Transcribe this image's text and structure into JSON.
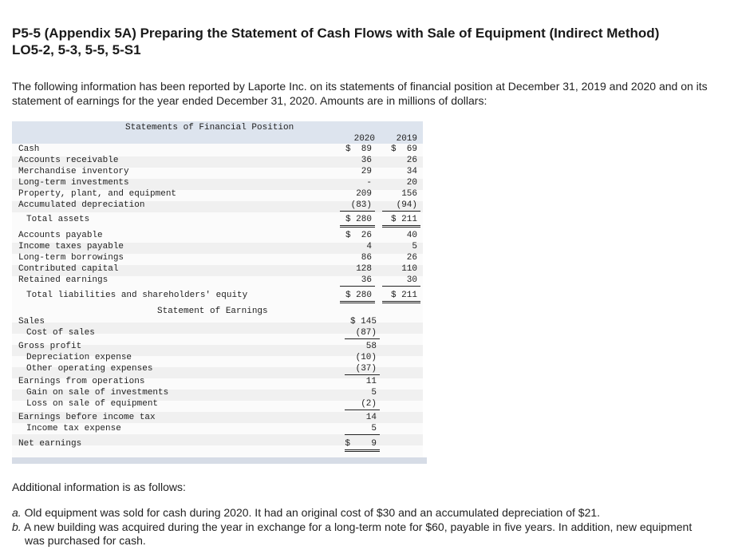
{
  "header": {
    "title": "P5-5 (Appendix 5A) Preparing the Statement of Cash Flows with Sale of Equipment (Indirect Method)",
    "subtitle": "LO5-2, 5-3, 5-5, 5-S1"
  },
  "intro": "The following information has been reported by Laporte Inc. on its statements of financial position at December 31, 2019 and 2020 and on its statement of earnings for the year ended December 31, 2020. Amounts are in millions of dollars:",
  "financial_position": {
    "title": "Statements of Financial Position",
    "years": [
      "2020",
      "2019"
    ],
    "rows": [
      [
        "Cash",
        "$  89",
        "$  69"
      ],
      [
        "Accounts receivable",
        "36",
        "26"
      ],
      [
        "Merchandise inventory",
        "29",
        "34"
      ],
      [
        "Long-term investments",
        "-",
        "20"
      ],
      [
        "Property, plant, and equipment",
        "209",
        "156"
      ],
      [
        "Accumulated depreciation",
        "(83)",
        "(94)"
      ],
      [
        "Total assets",
        "$ 280",
        "$ 211"
      ],
      [
        "Accounts payable",
        "$  26",
        "40"
      ],
      [
        "Income taxes payable",
        "4",
        "5"
      ],
      [
        "Long-term borrowings",
        "86",
        "26"
      ],
      [
        "Contributed capital",
        "128",
        "110"
      ],
      [
        "Retained earnings",
        "36",
        "30"
      ],
      [
        "Total liabilities and shareholders' equity",
        "$ 280",
        "$ 211"
      ]
    ]
  },
  "earnings": {
    "title": "Statement of Earnings",
    "rows": [
      [
        "Sales",
        "$ 145"
      ],
      [
        "Cost of sales",
        "(87)"
      ],
      [
        "Gross profit",
        "58"
      ],
      [
        "Depreciation expense",
        "(10)"
      ],
      [
        "Other operating expenses",
        "(37)"
      ],
      [
        "Earnings from operations",
        "11"
      ],
      [
        "Gain on sale of investments",
        "5"
      ],
      [
        "Loss on sale of equipment",
        "(2)"
      ],
      [
        "Earnings before income tax",
        "14"
      ],
      [
        "Income tax expense",
        "5"
      ],
      [
        "Net earnings",
        "$    9"
      ]
    ]
  },
  "additional": {
    "heading": "Additional information is as follows:",
    "items": [
      {
        "marker": "a.",
        "text": "Old equipment was sold for cash during 2020. It had an original cost of $30 and an accumulated depreciation of $21."
      },
      {
        "marker": "b.",
        "text": "A new building was acquired during the year in exchange for a long-term note for $60, payable in five years. In addition, new equipment was purchased for cash."
      }
    ]
  }
}
